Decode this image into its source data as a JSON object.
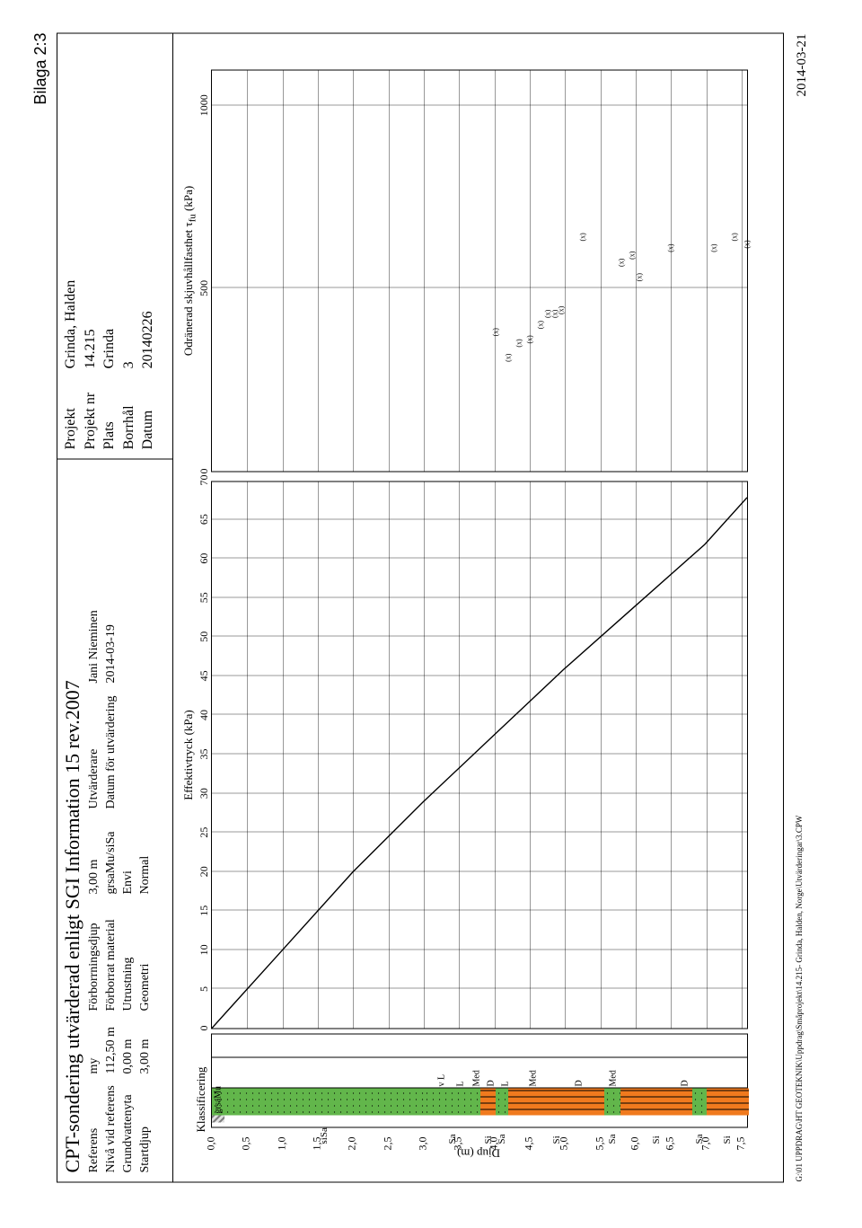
{
  "bilaga": "Bilaga 2:3",
  "title": "CPT-sondering utvärderad enligt SGI Information 15 rev.2007",
  "footer_left": "G:\\01 UPPDRAG\\HT GEOTEKNIK\\Uppdrag\\Småprojekt\\14.215- Grinda, Halden, Norge\\Utvärderingar\\3.CPW",
  "footer_right": "2014-03-21",
  "header_left": {
    "rows": [
      [
        "Referens",
        "my"
      ],
      [
        "Nivå vid referens",
        "112,50 m"
      ],
      [
        "Grundvattenyta",
        "0,00 m"
      ],
      [
        "Startdjup",
        "3,00 m"
      ]
    ],
    "rows2": [
      [
        "Förborrningsdjup",
        "3,00 m"
      ],
      [
        "Förborrat material",
        "grsaMu/siSa"
      ],
      [
        "Utrustning",
        "Envi"
      ],
      [
        "Geometri",
        "Normal"
      ]
    ],
    "rows3": [
      [
        "Utvärderare",
        "Jani Nieminen"
      ],
      [
        "Datum för utvärdering",
        "2014-03-19"
      ]
    ]
  },
  "header_right": [
    [
      "Projekt",
      "Grinda, Halden"
    ],
    [
      "Projekt nr",
      "14.215"
    ],
    [
      "Plats",
      "Grinda"
    ],
    [
      "Borrhål",
      "3"
    ],
    [
      "Datum",
      "20140226"
    ]
  ],
  "yaxis": {
    "title": "Djup  (m)",
    "min": 0.0,
    "max": 7.6,
    "step": 0.5,
    "ticks": [
      "0,0",
      "0,5",
      "1,0",
      "1,5",
      "2,0",
      "2,5",
      "3,0",
      "3,5",
      "4,0",
      "4,5",
      "5,0",
      "5,5",
      "6,0",
      "6,5",
      "7,0",
      "7,5"
    ]
  },
  "klass": {
    "title": "Klassificering",
    "col0": [
      {
        "from": 0,
        "to": 0.18,
        "style": "hatched"
      }
    ],
    "col1": [
      {
        "from": 0.0,
        "to": 0.18,
        "style": "green dots",
        "label": "grsaMu",
        "label_inside": true
      },
      {
        "from": 0.18,
        "to": 3.0,
        "style": "green dots",
        "label": "siSa"
      },
      {
        "from": 3.0,
        "to": 3.8,
        "style": "green dots",
        "label": "Sa"
      },
      {
        "from": 3.8,
        "to": 4.02,
        "style": "orange dashcol",
        "label": "Si"
      },
      {
        "from": 4.02,
        "to": 4.2,
        "style": "green dots",
        "label": "Sa"
      },
      {
        "from": 4.2,
        "to": 5.55,
        "style": "orange dashcol",
        "label": "Si"
      },
      {
        "from": 5.55,
        "to": 5.78,
        "style": "green dots",
        "label": "Sa"
      },
      {
        "from": 5.78,
        "to": 6.8,
        "style": "orange dashcol",
        "label": "Si"
      },
      {
        "from": 6.8,
        "to": 7.0,
        "style": "green dots",
        "label": "Sa"
      },
      {
        "from": 7.0,
        "to": 7.6,
        "style": "orange dashcol",
        "label": "Si"
      }
    ],
    "col2": [
      {
        "from": 3.1,
        "to": 3.4,
        "style": "",
        "label": "v L"
      },
      {
        "from": 3.4,
        "to": 3.65,
        "style": "",
        "label": "L"
      },
      {
        "from": 3.65,
        "to": 3.85,
        "style": "",
        "label": "Med"
      },
      {
        "from": 3.85,
        "to": 4.05,
        "style": "",
        "label": "D"
      },
      {
        "from": 4.05,
        "to": 4.25,
        "style": "",
        "label": "L"
      },
      {
        "from": 4.25,
        "to": 4.85,
        "style": "",
        "label": "Med"
      },
      {
        "from": 4.85,
        "to": 5.55,
        "style": "",
        "label": "D"
      },
      {
        "from": 5.55,
        "to": 5.8,
        "style": "",
        "label": "Med"
      },
      {
        "from": 5.8,
        "to": 7.6,
        "style": "",
        "label": "D"
      }
    ]
  },
  "effektiv": {
    "title": "Effektivtryck  (kPa)",
    "xmin": 0,
    "xmax": 70,
    "xstep": 5,
    "ticks": [
      "0",
      "5",
      "10",
      "15",
      "20",
      "25",
      "30",
      "35",
      "40",
      "45",
      "50",
      "55",
      "60",
      "65",
      "70"
    ],
    "curve": [
      [
        0,
        0
      ],
      [
        10,
        1
      ],
      [
        20,
        2
      ],
      [
        29,
        3
      ],
      [
        37.5,
        4
      ],
      [
        46,
        5
      ],
      [
        54,
        6
      ],
      [
        62,
        7
      ],
      [
        68,
        7.6
      ]
    ]
  },
  "shear": {
    "title_html": "Odränerad skjuvhållfasthet τ<sub>fu</sub>  (kPa)",
    "xmin": 0,
    "xmax": 1100,
    "xstep_grid": 500,
    "ticks": [
      [
        0,
        "0"
      ],
      [
        500,
        "500"
      ],
      [
        1000,
        "1000"
      ]
    ],
    "points": [
      {
        "d": 4.02,
        "v": 380
      },
      {
        "d": 4.2,
        "v": 310
      },
      {
        "d": 4.35,
        "v": 350
      },
      {
        "d": 4.5,
        "v": 360
      },
      {
        "d": 4.65,
        "v": 400
      },
      {
        "d": 4.75,
        "v": 430
      },
      {
        "d": 4.85,
        "v": 430
      },
      {
        "d": 4.95,
        "v": 440
      },
      {
        "d": 5.25,
        "v": 640
      },
      {
        "d": 5.8,
        "v": 570
      },
      {
        "d": 5.95,
        "v": 590
      },
      {
        "d": 6.05,
        "v": 530
      },
      {
        "d": 6.5,
        "v": 610
      },
      {
        "d": 7.1,
        "v": 610
      },
      {
        "d": 7.4,
        "v": 640
      },
      {
        "d": 7.58,
        "v": 620
      }
    ],
    "point_label": "(x)"
  },
  "colors": {
    "green": "#62b64b",
    "orange": "#f07a1e",
    "grid": "#000000"
  }
}
